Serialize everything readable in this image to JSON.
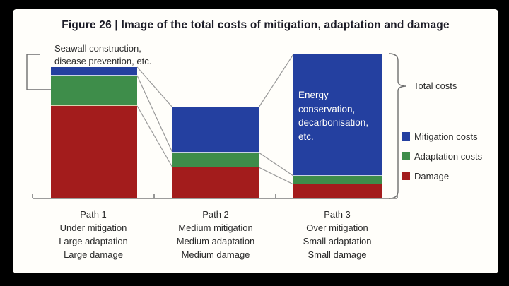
{
  "header": {
    "title": "Figure 26 | Image of the total costs of mitigation, adaptation and damage"
  },
  "annotations": {
    "seawall": {
      "lines": [
        "Seawall construction,",
        "disease prevention, etc."
      ],
      "target": "Path 1 adaptation segment"
    },
    "energy": {
      "lines": [
        "Energy",
        "conservation,",
        "decarbonisation,",
        "etc."
      ],
      "target": "Path 3 mitigation segment"
    },
    "total_costs": {
      "label": "Total costs",
      "target": "Path 3 full bar (bracket)"
    }
  },
  "chart_data": {
    "type": "bar",
    "stacked": true,
    "title": "Figure 26 | Image of the total costs of mitigation, adaptation and damage",
    "categories": [
      "Path 1",
      "Path 2",
      "Path 3"
    ],
    "category_sublabels": [
      [
        "Under mitigation",
        "Large adaptation",
        "Large damage"
      ],
      [
        "Medium mitigation",
        "Medium adaptation",
        "Medium damage"
      ],
      [
        "Over mitigation",
        "Small adaptation",
        "Small damage"
      ]
    ],
    "series": [
      {
        "name": "Mitigation costs",
        "color": "#2440a0",
        "values": [
          12,
          64,
          172
        ]
      },
      {
        "name": "Adaptation costs",
        "color": "#3e8d4a",
        "values": [
          43,
          21,
          12
        ]
      },
      {
        "name": "Damage",
        "color": "#a31c1c",
        "values": [
          131,
          44,
          20
        ]
      }
    ],
    "value_units": "schematic relative cost (no numeric axis shown in figure)",
    "ylim": [
      0,
      210
    ],
    "grid": false,
    "legend_position": "right",
    "connector_lines": "segment boundaries joined between adjacent bars"
  }
}
